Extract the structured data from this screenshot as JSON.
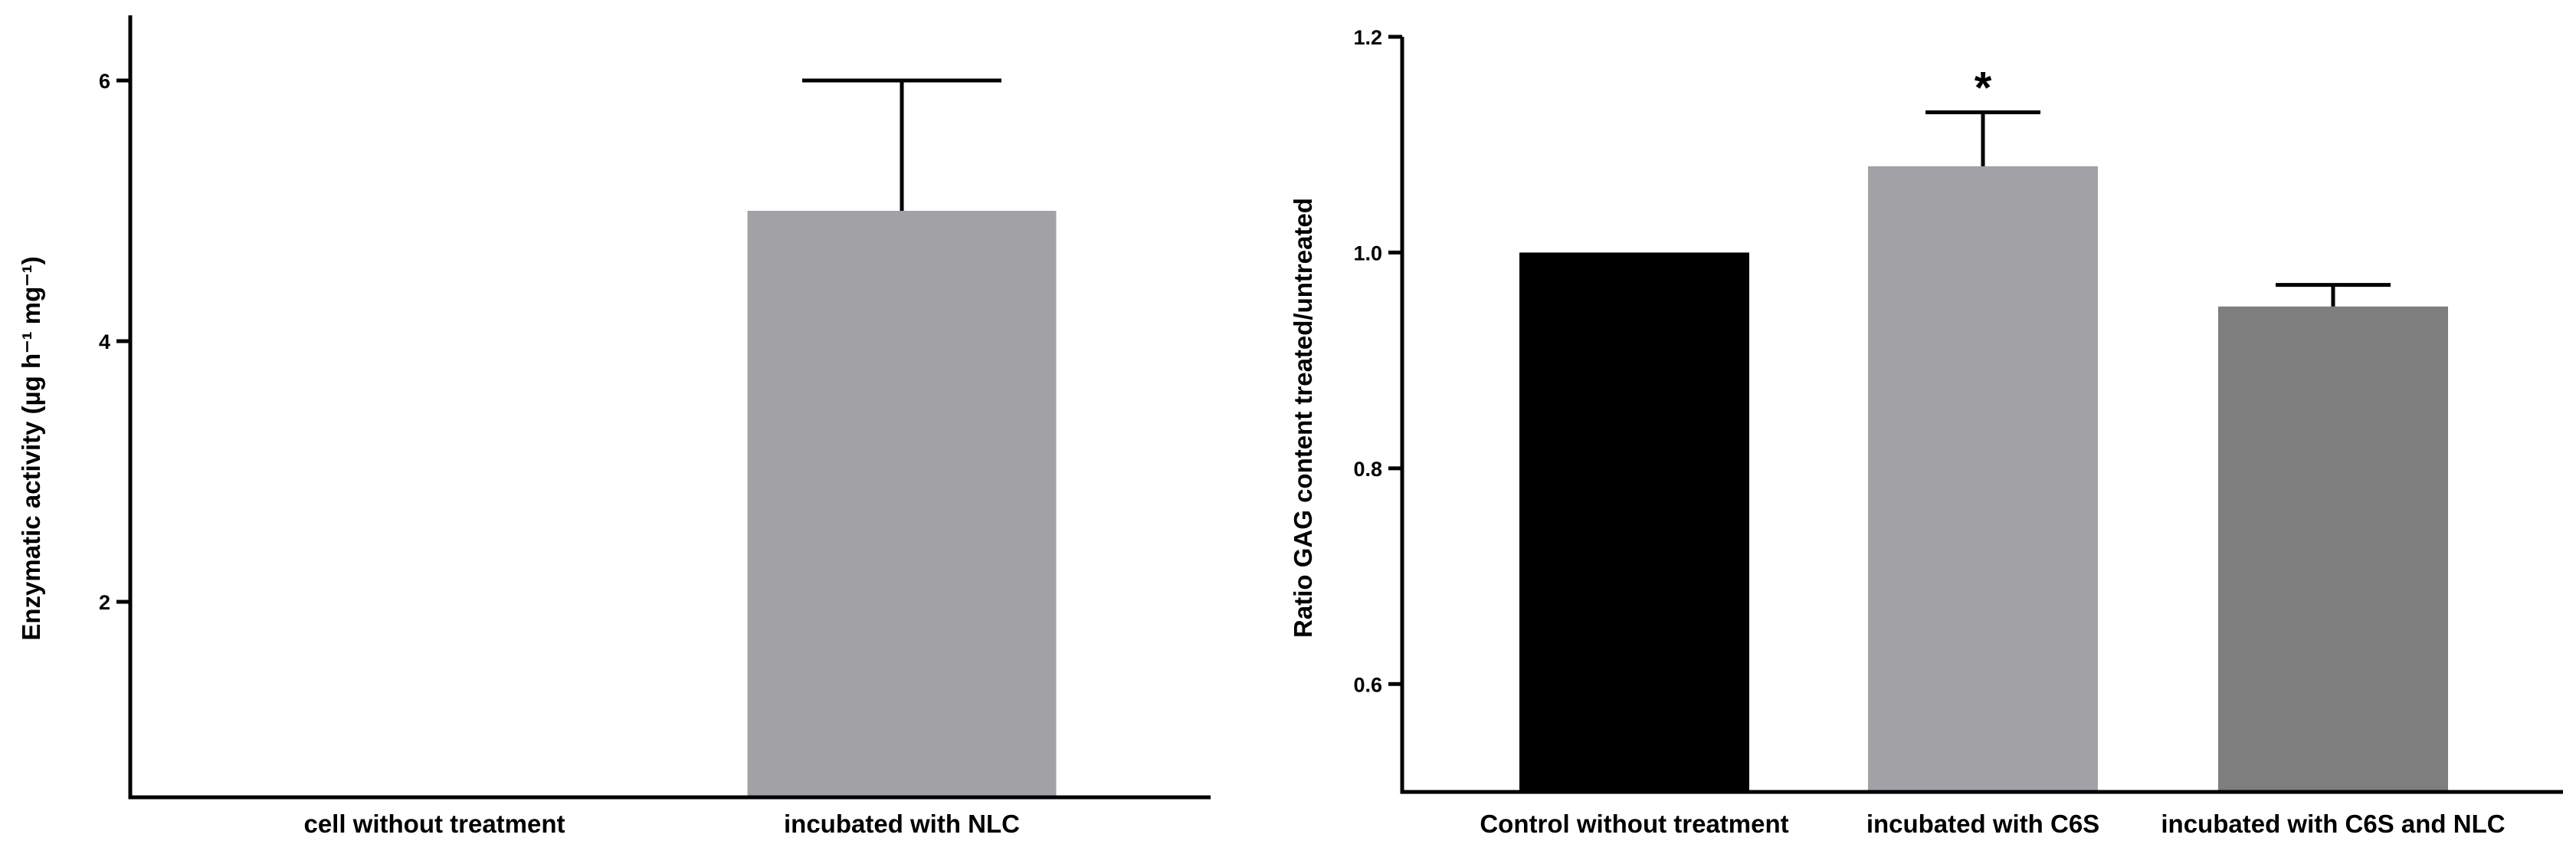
{
  "chart_data": [
    {
      "type": "bar",
      "ylabel": "Enzymatic activity (µg h⁻¹ mg⁻¹)",
      "ylim": [
        0.5,
        6.5
      ],
      "yticks": [
        2,
        4,
        6
      ],
      "categories": [
        "cell without treatment",
        "incubated with NLC"
      ],
      "values": [
        0,
        5
      ],
      "errors": [
        0,
        1
      ],
      "colors": [
        "#a2a1a6",
        "#a2a1a6"
      ],
      "annotations": [
        "",
        ""
      ],
      "grid": false
    },
    {
      "type": "bar",
      "ylabel": "Ratio GAG content  treated/untreated",
      "ylim": [
        0.5,
        1.2
      ],
      "yticks": [
        0.6,
        0.8,
        1.0,
        1.2
      ],
      "ytick_labels": [
        "0.6",
        "0.8",
        "1.0",
        "1.2"
      ],
      "categories": [
        "Control without treatment",
        "incubated with C6S",
        "incubated with C6S and NLC"
      ],
      "values": [
        1.0,
        1.08,
        0.95
      ],
      "errors": [
        0,
        0.05,
        0.02
      ],
      "colors": [
        "#000000",
        "#a2a1a6",
        "#7e7e7e"
      ],
      "annotations": [
        "",
        "*",
        ""
      ],
      "grid": false
    }
  ]
}
